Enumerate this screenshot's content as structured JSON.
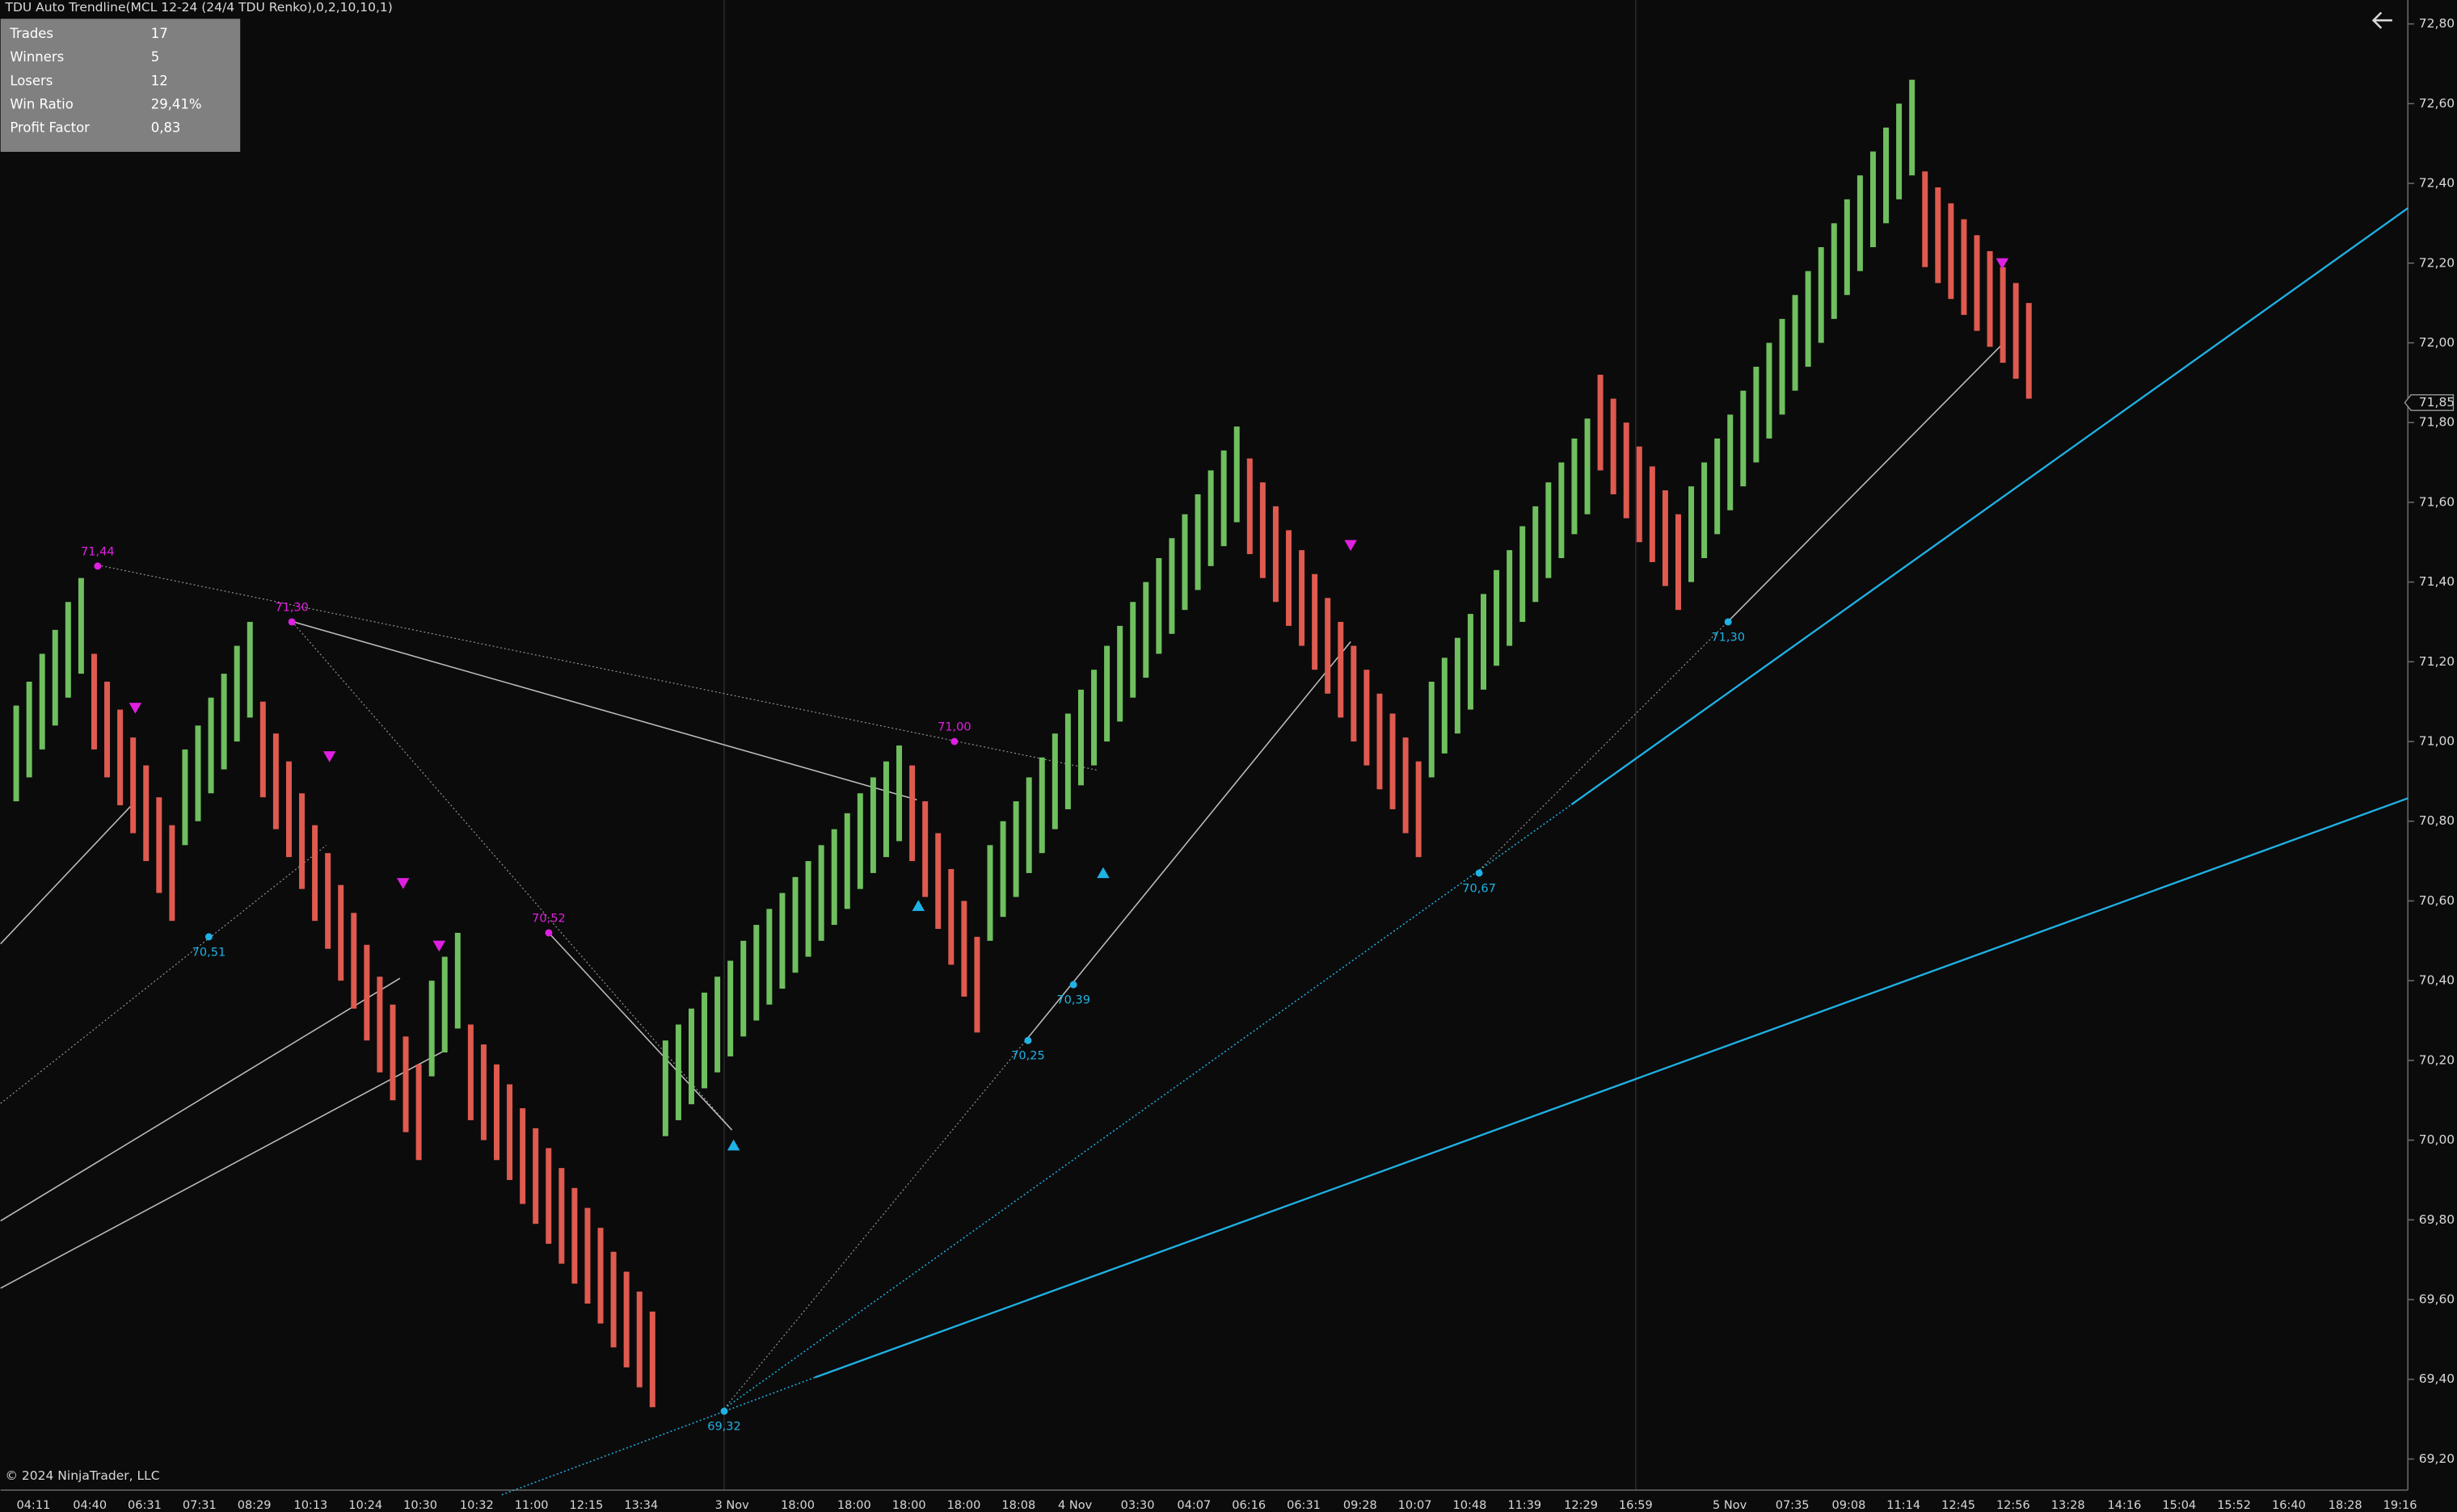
{
  "chart_data": {
    "type": "candlestick",
    "title": "TDU Auto Trendline(MCL 12-24 (24/4 TDU Renko),0,2,10,10,1)",
    "copyright": "© 2024 NinjaTrader, LLC",
    "stats": [
      [
        "Trades",
        "17"
      ],
      [
        "Winners",
        "5"
      ],
      [
        "Losers",
        "12"
      ],
      [
        "Win Ratio",
        "29,41%"
      ],
      [
        "Profit Factor",
        "0,83"
      ]
    ],
    "up_color": "#6fbf5f",
    "down_color": "#df5a4f",
    "open": [
      70.85,
      70.91,
      70.98,
      71.04,
      71.11,
      71.17,
      71.22,
      71.15,
      71.08,
      71.01,
      70.94,
      70.86,
      70.79,
      70.74,
      70.8,
      70.87,
      70.93,
      71.0,
      71.06,
      71.1,
      71.02,
      70.95,
      70.87,
      70.79,
      70.72,
      70.64,
      70.57,
      70.49,
      70.41,
      70.34,
      70.26,
      70.19,
      70.16,
      70.22,
      70.28,
      70.29,
      70.24,
      70.19,
      70.14,
      70.08,
      70.03,
      69.98,
      69.93,
      69.88,
      69.83,
      69.78,
      69.72,
      69.67,
      69.62,
      69.57,
      70.01,
      70.05,
      70.09,
      70.13,
      70.17,
      70.21,
      70.26,
      70.3,
      70.34,
      70.38,
      70.42,
      70.46,
      70.5,
      70.54,
      70.58,
      70.63,
      70.67,
      70.71,
      70.75,
      70.94,
      70.85,
      70.77,
      70.68,
      70.6,
      70.51,
      70.5,
      70.56,
      70.61,
      70.67,
      70.72,
      70.78,
      70.83,
      70.89,
      70.94,
      71.0,
      71.05,
      71.11,
      71.16,
      71.22,
      71.27,
      71.33,
      71.38,
      71.44,
      71.49,
      71.55,
      71.71,
      71.65,
      71.59,
      71.53,
      71.48,
      71.42,
      71.36,
      71.3,
      71.24,
      71.18,
      71.12,
      71.07,
      71.01,
      70.95,
      70.91,
      70.97,
      71.02,
      71.08,
      71.13,
      71.19,
      71.24,
      71.3,
      71.35,
      71.41,
      71.46,
      71.52,
      71.57,
      71.92,
      71.86,
      71.8,
      71.74,
      71.69,
      71.63,
      71.57,
      71.4,
      71.46,
      71.52,
      71.58,
      71.64,
      71.7,
      71.76,
      71.82,
      71.88,
      71.94,
      72.0,
      72.06,
      72.12,
      72.18,
      72.24,
      72.3,
      72.36,
      72.42,
      72.43,
      72.39,
      72.35,
      72.31,
      72.27,
      72.23,
      72.19,
      72.15,
      72.1
    ],
    "close": [
      71.09,
      71.15,
      71.22,
      71.28,
      71.35,
      71.41,
      70.98,
      70.91,
      70.84,
      70.77,
      70.7,
      70.62,
      70.55,
      70.98,
      71.04,
      71.11,
      71.17,
      71.24,
      71.3,
      70.86,
      70.78,
      70.71,
      70.63,
      70.55,
      70.48,
      70.4,
      70.33,
      70.25,
      70.17,
      70.1,
      70.02,
      69.95,
      70.4,
      70.46,
      70.52,
      70.05,
      70.0,
      69.95,
      69.9,
      69.84,
      69.79,
      69.74,
      69.69,
      69.64,
      69.59,
      69.54,
      69.48,
      69.43,
      69.38,
      69.33,
      70.25,
      70.29,
      70.33,
      70.37,
      70.41,
      70.45,
      70.5,
      70.54,
      70.58,
      70.62,
      70.66,
      70.7,
      70.74,
      70.78,
      70.82,
      70.87,
      70.91,
      70.95,
      70.99,
      70.7,
      70.61,
      70.53,
      70.44,
      70.36,
      70.27,
      70.74,
      70.8,
      70.85,
      70.91,
      70.96,
      71.02,
      71.07,
      71.13,
      71.18,
      71.24,
      71.29,
      71.35,
      71.4,
      71.46,
      71.51,
      71.57,
      71.62,
      71.68,
      71.73,
      71.79,
      71.47,
      71.41,
      71.35,
      71.29,
      71.24,
      71.18,
      71.12,
      71.06,
      71.0,
      70.94,
      70.88,
      70.83,
      70.77,
      70.71,
      71.15,
      71.21,
      71.26,
      71.32,
      71.37,
      71.43,
      71.48,
      71.54,
      71.59,
      71.65,
      71.7,
      71.76,
      71.81,
      71.68,
      71.62,
      71.56,
      71.5,
      71.45,
      71.39,
      71.33,
      71.64,
      71.7,
      71.76,
      71.82,
      71.88,
      71.94,
      72.0,
      72.06,
      72.12,
      72.18,
      72.24,
      72.3,
      72.36,
      72.42,
      72.48,
      72.54,
      72.6,
      72.66,
      72.19,
      72.15,
      72.11,
      72.07,
      72.03,
      71.99,
      71.95,
      71.91,
      71.86
    ],
    "x_labels": [
      "04:11",
      "04:40",
      "06:31",
      "07:31",
      "08:29",
      "10:13",
      "10:24",
      "10:30",
      "10:32",
      "11:00",
      "12:15",
      "13:34",
      "3 Nov",
      "18:00",
      "18:00",
      "18:00",
      "18:00",
      "18:08",
      "4 Nov",
      "03:30",
      "04:07",
      "06:16",
      "06:31",
      "09:28",
      "10:07",
      "10:48",
      "11:39",
      "12:29",
      "16:59",
      "5 Nov",
      "07:35",
      "09:08",
      "11:14",
      "12:45",
      "12:56",
      "13:28",
      "14:16",
      "15:04",
      "15:52",
      "16:40",
      "18:28",
      "19:16"
    ],
    "ylim": [
      69.13,
      72.86
    ],
    "yticks": [
      {
        "value": 72.8,
        "label": "72,80"
      },
      {
        "value": 72.6,
        "label": "72,60"
      },
      {
        "value": 72.4,
        "label": "72,40"
      },
      {
        "value": 72.2,
        "label": "72,20"
      },
      {
        "value": 72.0,
        "label": "72,00"
      },
      {
        "value": 71.8,
        "label": "71,80"
      },
      {
        "value": 71.6,
        "label": "71,60"
      },
      {
        "value": 71.4,
        "label": "71,40"
      },
      {
        "value": 71.2,
        "label": "71,20"
      },
      {
        "value": 71.0,
        "label": "71,00"
      },
      {
        "value": 70.8,
        "label": "70,80"
      },
      {
        "value": 70.6,
        "label": "70,60"
      },
      {
        "value": 70.4,
        "label": "70,40"
      },
      {
        "value": 70.2,
        "label": "70,20"
      },
      {
        "value": 70.0,
        "label": "70,00"
      },
      {
        "value": 69.8,
        "label": "69,80"
      },
      {
        "value": 69.6,
        "label": "69,60"
      },
      {
        "value": 69.4,
        "label": "69,40"
      },
      {
        "value": 69.2,
        "label": "69,20"
      }
    ],
    "last_price": {
      "value": 71.85,
      "label": "71,85"
    },
    "high_pivots": [
      {
        "value": 71.44,
        "label": "71,44"
      },
      {
        "value": 71.3,
        "label": "71,30"
      },
      {
        "value": 70.52,
        "label": "70,52"
      },
      {
        "value": 71.0,
        "label": "71,00"
      }
    ],
    "low_pivots": [
      {
        "value": 70.51,
        "label": "70,51"
      },
      {
        "value": 69.32,
        "label": "69,32"
      },
      {
        "value": 70.25,
        "label": "70,25"
      },
      {
        "value": 70.39,
        "label": "70,39"
      },
      {
        "value": 70.67,
        "label": "70,67"
      },
      {
        "value": 71.3,
        "label": "71,30"
      }
    ]
  }
}
